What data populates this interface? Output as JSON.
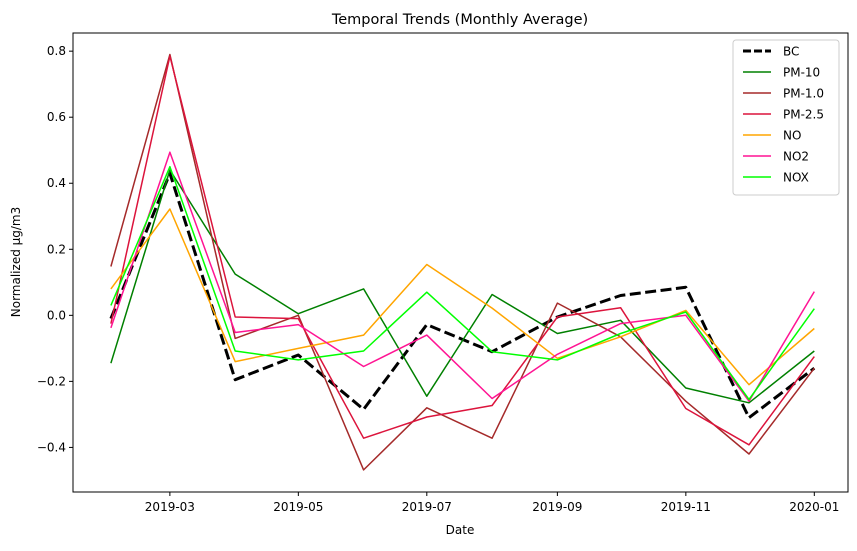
{
  "chart_data": {
    "type": "line",
    "title": "Temporal Trends (Monthly Average)",
    "xlabel": "Date",
    "ylabel": "Normalized µg/m3",
    "x": [
      "2019-02",
      "2019-03",
      "2019-04",
      "2019-05",
      "2019-06",
      "2019-07",
      "2019-08",
      "2019-09",
      "2019-10",
      "2019-11",
      "2019-12",
      "2020-01"
    ],
    "x_tick_labels": [
      "2019-03",
      "2019-05",
      "2019-07",
      "2019-09",
      "2019-11",
      "2020-01"
    ],
    "y_tick_labels": [
      "−0.4",
      "−0.2",
      "0.0",
      "0.2",
      "0.4",
      "0.6",
      "0.8"
    ],
    "xlim": [
      "2019-01-14",
      "2020-01-17"
    ],
    "ylim": [
      -0.535,
      0.855
    ],
    "grid": false,
    "legend_position": "top-right",
    "series": [
      {
        "name": "BC",
        "color": "#000000",
        "dashed": true,
        "width": 3,
        "values": [
          -0.01,
          0.43,
          -0.195,
          -0.12,
          -0.285,
          -0.028,
          -0.11,
          -0.005,
          0.06,
          0.085,
          -0.31,
          -0.16
        ]
      },
      {
        "name": "PM-10",
        "color": "#008000",
        "dashed": false,
        "width": 1.5,
        "values": [
          -0.145,
          0.44,
          0.125,
          0.005,
          0.08,
          -0.245,
          0.063,
          -0.055,
          -0.015,
          -0.22,
          -0.265,
          -0.108
        ]
      },
      {
        "name": "PM-1.0",
        "color": "#a52a2a",
        "dashed": false,
        "width": 1.5,
        "values": [
          0.148,
          0.79,
          -0.07,
          0.0,
          -0.468,
          -0.28,
          -0.372,
          0.037,
          -0.065,
          -0.26,
          -0.42,
          -0.16
        ]
      },
      {
        "name": "PM-2.5",
        "color": "#dc143c",
        "dashed": false,
        "width": 1.5,
        "values": [
          -0.025,
          0.785,
          -0.005,
          -0.01,
          -0.372,
          -0.308,
          -0.273,
          -0.005,
          0.023,
          -0.282,
          -0.392,
          -0.125
        ]
      },
      {
        "name": "NO",
        "color": "#ffa500",
        "dashed": false,
        "width": 1.5,
        "values": [
          0.08,
          0.322,
          -0.14,
          -0.1,
          -0.06,
          0.154,
          0.022,
          -0.13,
          -0.065,
          0.015,
          -0.21,
          -0.04
        ]
      },
      {
        "name": "NO2",
        "color": "#ff1493",
        "dashed": false,
        "width": 1.5,
        "values": [
          -0.038,
          0.494,
          -0.052,
          -0.028,
          -0.155,
          -0.06,
          -0.252,
          -0.118,
          -0.025,
          0.0,
          -0.26,
          0.072
        ]
      },
      {
        "name": "NOX",
        "color": "#00ff00",
        "dashed": false,
        "width": 1.5,
        "values": [
          0.03,
          0.45,
          -0.108,
          -0.135,
          -0.108,
          0.07,
          -0.11,
          -0.135,
          -0.055,
          0.01,
          -0.255,
          0.02
        ]
      }
    ]
  }
}
